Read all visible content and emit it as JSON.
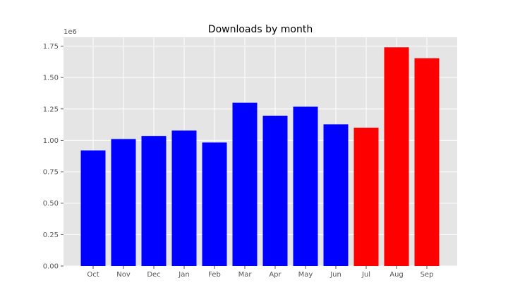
{
  "chart_data": {
    "type": "bar",
    "title": "Downloads by month",
    "xlabel": "",
    "ylabel": "",
    "y_offset_label": "1e6",
    "categories": [
      "Oct",
      "Nov",
      "Dec",
      "Jan",
      "Feb",
      "Mar",
      "Apr",
      "May",
      "Jun",
      "Jul",
      "Aug",
      "Sep"
    ],
    "values": [
      920000,
      1010000,
      1035000,
      1078000,
      983000,
      1300000,
      1195000,
      1268000,
      1128000,
      1100000,
      1740000,
      1653000
    ],
    "bar_colors": [
      "#0000ff",
      "#0000ff",
      "#0000ff",
      "#0000ff",
      "#0000ff",
      "#0000ff",
      "#0000ff",
      "#0000ff",
      "#0000ff",
      "#ff0000",
      "#ff0000",
      "#ff0000"
    ],
    "ylim": [
      0,
      1820000
    ],
    "yticks": [
      0,
      250000,
      500000,
      750000,
      1000000,
      1250000,
      1500000,
      1750000
    ],
    "ytick_labels": [
      "0.00",
      "0.25",
      "0.50",
      "0.75",
      "1.00",
      "1.25",
      "1.50",
      "1.75"
    ],
    "grid": true,
    "background": "#e5e5e5",
    "grid_color": "#ffffff"
  }
}
